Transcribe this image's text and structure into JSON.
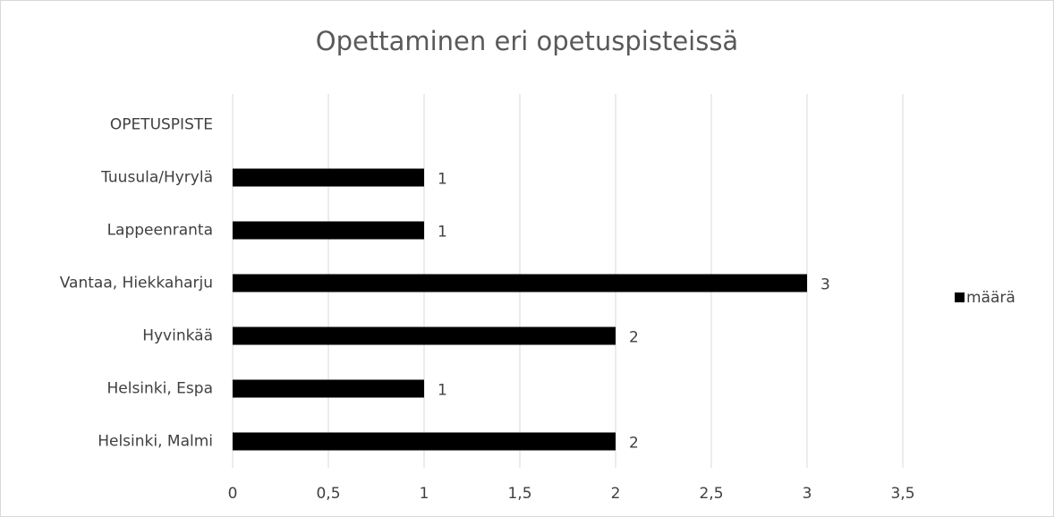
{
  "chart_data": {
    "type": "hbar",
    "title": "Opettaminen eri opetuspisteissä",
    "categories": [
      "OPETUSPISTE",
      "Tuusula/Hyrylä",
      "Lappeenranta",
      "Vantaa, Hiekkaharju",
      "Hyvinkää",
      "Helsinki, Espa",
      "Helsinki, Malmi"
    ],
    "series": [
      {
        "name": "määrä",
        "color": "#000000",
        "values": [
          null,
          1,
          1,
          3,
          2,
          1,
          2
        ]
      }
    ],
    "xlim": [
      0,
      3.5
    ],
    "xticks": [
      0,
      {
        "value": 0.5,
        "label": "0,5"
      },
      1,
      {
        "value": 1.5,
        "label": "1,5"
      },
      2,
      {
        "value": 2.5,
        "label": "2,5"
      },
      3,
      {
        "value": 3.5,
        "label": "3,5"
      }
    ],
    "grid": true,
    "legend": "right"
  }
}
